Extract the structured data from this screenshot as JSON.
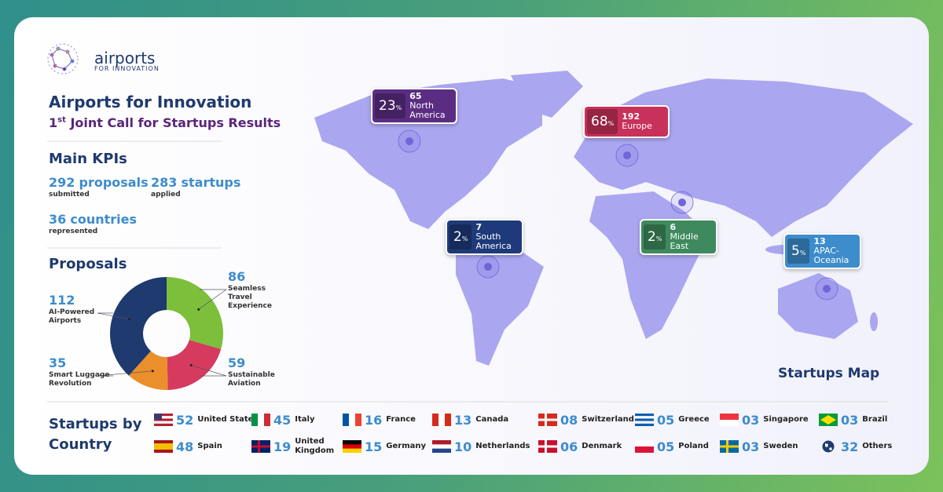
{
  "logo": {
    "name": "airports",
    "tagline": "FOR INNOVATION"
  },
  "header": {
    "title": "Airports for Innovation",
    "subtitle_ordinal": "1",
    "subtitle_suffix": "st",
    "subtitle": "Joint Call for Startups Results"
  },
  "kpis": {
    "title": "Main KPIs",
    "items": [
      {
        "value": 292,
        "unit": "proposals",
        "caption": "submitted"
      },
      {
        "value": 283,
        "unit": "startups",
        "caption": "applied"
      },
      {
        "value": 36,
        "unit": "countries",
        "caption": "represented"
      }
    ]
  },
  "chart_data": {
    "type": "donut",
    "title": "Proposals",
    "categories": [
      "Seamless Travel Experience",
      "Sustainable Aviation",
      "Smart Luggage Revolution",
      "AI-Powered Airports"
    ],
    "values": [
      86,
      59,
      35,
      112
    ],
    "colors": [
      "#7cbf3a",
      "#d63a5e",
      "#ea8f2b",
      "#1e3a6e"
    ]
  },
  "map": {
    "title": "Startups Map",
    "percent_unit": "%",
    "regions": [
      {
        "percent": 23,
        "count": 65,
        "name": "North America",
        "color": "#5b2d82"
      },
      {
        "percent": 68,
        "count": 192,
        "name": "Europe",
        "color": "#c8315a"
      },
      {
        "percent": 2,
        "count": 7,
        "name": "South America",
        "color": "#1f3a7a"
      },
      {
        "percent": 2,
        "count": 6,
        "name": "Middle East",
        "color": "#3e8a5e"
      },
      {
        "percent": 5,
        "count": 13,
        "name": "APAC-Oceania",
        "color": "#3d8ccc"
      }
    ]
  },
  "countries": {
    "title": "Startups by Country",
    "items": [
      {
        "count": "52",
        "name": "United States"
      },
      {
        "count": "45",
        "name": "Italy"
      },
      {
        "count": "16",
        "name": "France"
      },
      {
        "count": "13",
        "name": "Canada"
      },
      {
        "count": "08",
        "name": "Switzerland"
      },
      {
        "count": "05",
        "name": "Greece"
      },
      {
        "count": "03",
        "name": "Singapore"
      },
      {
        "count": "03",
        "name": "Brazil"
      },
      {
        "count": "48",
        "name": "Spain"
      },
      {
        "count": "19",
        "name": "United Kingdom"
      },
      {
        "count": "15",
        "name": "Germany"
      },
      {
        "count": "10",
        "name": "Netherlands"
      },
      {
        "count": "06",
        "name": "Denmark"
      },
      {
        "count": "05",
        "name": "Poland"
      },
      {
        "count": "03",
        "name": "Sweden"
      },
      {
        "count": "32",
        "name": "Others"
      }
    ]
  }
}
